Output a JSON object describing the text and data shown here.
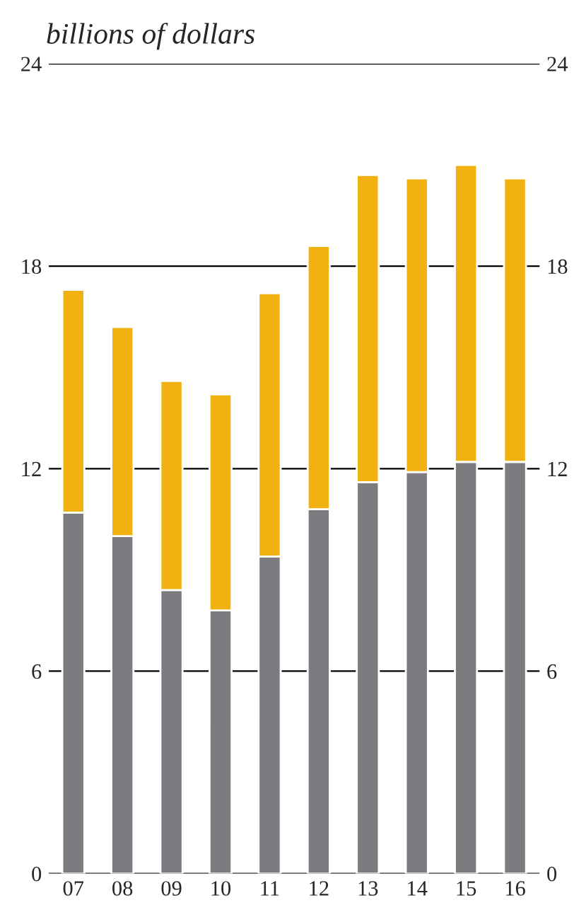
{
  "chart_data": {
    "type": "bar",
    "title": "billions of dollars",
    "stacked": true,
    "categories": [
      "07",
      "08",
      "09",
      "10",
      "11",
      "12",
      "13",
      "14",
      "15",
      "16"
    ],
    "series": [
      {
        "color": "#7b7b80",
        "values": [
          10.7,
          10.0,
          8.4,
          7.8,
          9.4,
          10.8,
          11.6,
          11.9,
          12.2,
          12.2
        ]
      },
      {
        "color": "#f0b111",
        "values": [
          6.6,
          6.2,
          6.2,
          6.4,
          7.8,
          7.8,
          9.1,
          8.7,
          8.8,
          8.4
        ]
      }
    ],
    "ylim": [
      0,
      24
    ],
    "yticks": [
      0,
      6,
      12,
      18,
      24
    ],
    "y2lim": [
      0,
      24
    ],
    "y2ticks": [
      0,
      6,
      12,
      18,
      24
    ],
    "grid": "y",
    "legend": false
  }
}
